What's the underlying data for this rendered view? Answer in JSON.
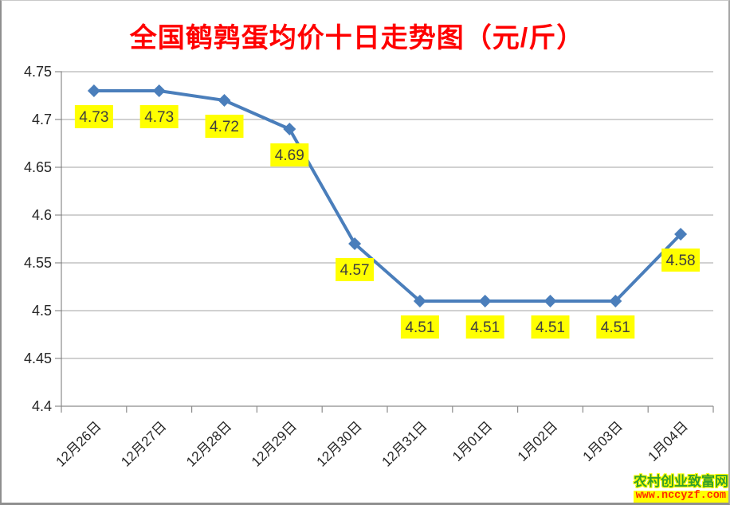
{
  "chart_data": {
    "type": "line",
    "title": "全国鹌鹑蛋均价十日走势图（元/斤）",
    "categories": [
      "12月26日",
      "12月27日",
      "12月28日",
      "12月29日",
      "12月30日",
      "12月31日",
      "1月01日",
      "1月02日",
      "1月03日",
      "1月04日"
    ],
    "values": [
      4.73,
      4.73,
      4.72,
      4.69,
      4.57,
      4.51,
      4.51,
      4.51,
      4.51,
      4.58
    ],
    "labels": [
      "4.73",
      "4.73",
      "4.72",
      "4.69",
      "4.57",
      "4.51",
      "4.51",
      "4.51",
      "4.51",
      "4.58"
    ],
    "ylim": [
      4.4,
      4.75
    ],
    "yticks": [
      4.75,
      4.7,
      4.65,
      4.6,
      4.55,
      4.5,
      4.45,
      4.4
    ],
    "xlabel": "",
    "ylabel": "",
    "grid": true,
    "legend": "none",
    "x_label_rotation_deg": -45,
    "marker_shape": "diamond"
  },
  "watermark": {
    "site_name": "农村创业致富网",
    "url": "www.nccyzf.com"
  },
  "colors": {
    "title": "#ff0000",
    "line": "#4a7ebb",
    "data_label_bg": "#ffff00",
    "data_label_text": "#3f3f3f",
    "gridline": "#a3a3a3",
    "axis": "#8c8c8c",
    "tick_text": "#262626",
    "watermark_site": "#33a02c",
    "watermark_glow": "#ffff00",
    "watermark_url": "#ff2a00",
    "watermark_url_bg": "#ffff00"
  }
}
